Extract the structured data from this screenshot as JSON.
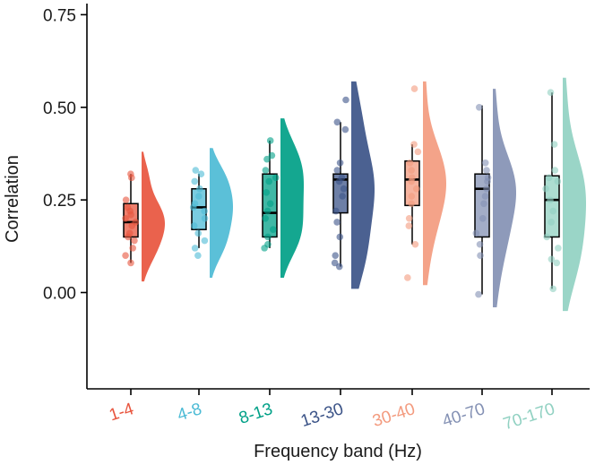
{
  "chart_data": {
    "type": "raincloud",
    "title": "",
    "xlabel": "Frequency band (Hz)",
    "ylabel": "Correlation",
    "ylim": [
      -0.26,
      0.78
    ],
    "yticks": [
      0.0,
      0.25,
      0.5,
      0.75
    ],
    "ytick_labels": [
      "0.00",
      "0.25",
      "0.50",
      "0.75"
    ],
    "categories": [
      "1-4",
      "4-8",
      "8-13",
      "13-30",
      "30-40",
      "40-70",
      "70-170"
    ],
    "colors": [
      "#e8553e",
      "#4dbbd5",
      "#00a087",
      "#3c5488",
      "#f39b7f",
      "#8491b4",
      "#91d1c2"
    ],
    "series": [
      {
        "name": "1-4",
        "box": {
          "min": 0.08,
          "q1": 0.15,
          "median": 0.19,
          "q3": 0.24,
          "max": 0.32
        },
        "points": [
          0.32,
          0.31,
          0.25,
          0.23,
          0.22,
          0.21,
          0.2,
          0.19,
          0.18,
          0.16,
          0.15,
          0.14,
          0.12,
          0.1,
          0.08
        ],
        "density_range": [
          0.03,
          0.38
        ]
      },
      {
        "name": "4-8",
        "box": {
          "min": 0.12,
          "q1": 0.17,
          "median": 0.23,
          "q3": 0.28,
          "max": 0.32
        },
        "points": [
          0.33,
          0.32,
          0.3,
          0.28,
          0.26,
          0.24,
          0.23,
          0.22,
          0.2,
          0.18,
          0.16,
          0.14,
          0.12,
          0.1
        ],
        "density_range": [
          0.04,
          0.39
        ]
      },
      {
        "name": "8-13",
        "box": {
          "min": 0.12,
          "q1": 0.15,
          "median": 0.215,
          "q3": 0.32,
          "max": 0.41
        },
        "points": [
          0.41,
          0.37,
          0.36,
          0.33,
          0.31,
          0.3,
          0.27,
          0.24,
          0.22,
          0.2,
          0.17,
          0.15,
          0.13,
          0.12
        ],
        "density_range": [
          0.04,
          0.47
        ]
      },
      {
        "name": "13-30",
        "box": {
          "min": 0.07,
          "q1": 0.215,
          "median": 0.305,
          "q3": 0.32,
          "max": 0.46
        },
        "points": [
          0.52,
          0.46,
          0.44,
          0.35,
          0.33,
          0.31,
          0.3,
          0.28,
          0.26,
          0.22,
          0.19,
          0.15,
          0.1,
          0.08,
          0.07
        ],
        "density_range": [
          0.01,
          0.57
        ]
      },
      {
        "name": "30-40",
        "box": {
          "min": 0.13,
          "q1": 0.235,
          "median": 0.305,
          "q3": 0.355,
          "max": 0.4
        },
        "points": [
          0.55,
          0.4,
          0.38,
          0.35,
          0.33,
          0.31,
          0.3,
          0.28,
          0.26,
          0.24,
          0.2,
          0.18,
          0.13,
          0.04
        ],
        "density_range": [
          0.02,
          0.57
        ]
      },
      {
        "name": "40-70",
        "box": {
          "min": -0.005,
          "q1": 0.15,
          "median": 0.28,
          "q3": 0.32,
          "max": 0.505
        },
        "points": [
          0.5,
          0.35,
          0.33,
          0.31,
          0.3,
          0.28,
          0.26,
          0.24,
          0.2,
          0.16,
          0.13,
          0.1,
          -0.005
        ],
        "density_range": [
          -0.04,
          0.55
        ]
      },
      {
        "name": "70-170",
        "box": {
          "min": 0.01,
          "q1": 0.15,
          "median": 0.25,
          "q3": 0.315,
          "max": 0.54
        },
        "points": [
          0.54,
          0.4,
          0.33,
          0.31,
          0.3,
          0.28,
          0.25,
          0.22,
          0.19,
          0.15,
          0.12,
          0.09,
          0.08,
          0.01
        ],
        "density_range": [
          -0.05,
          0.58
        ]
      }
    ]
  }
}
